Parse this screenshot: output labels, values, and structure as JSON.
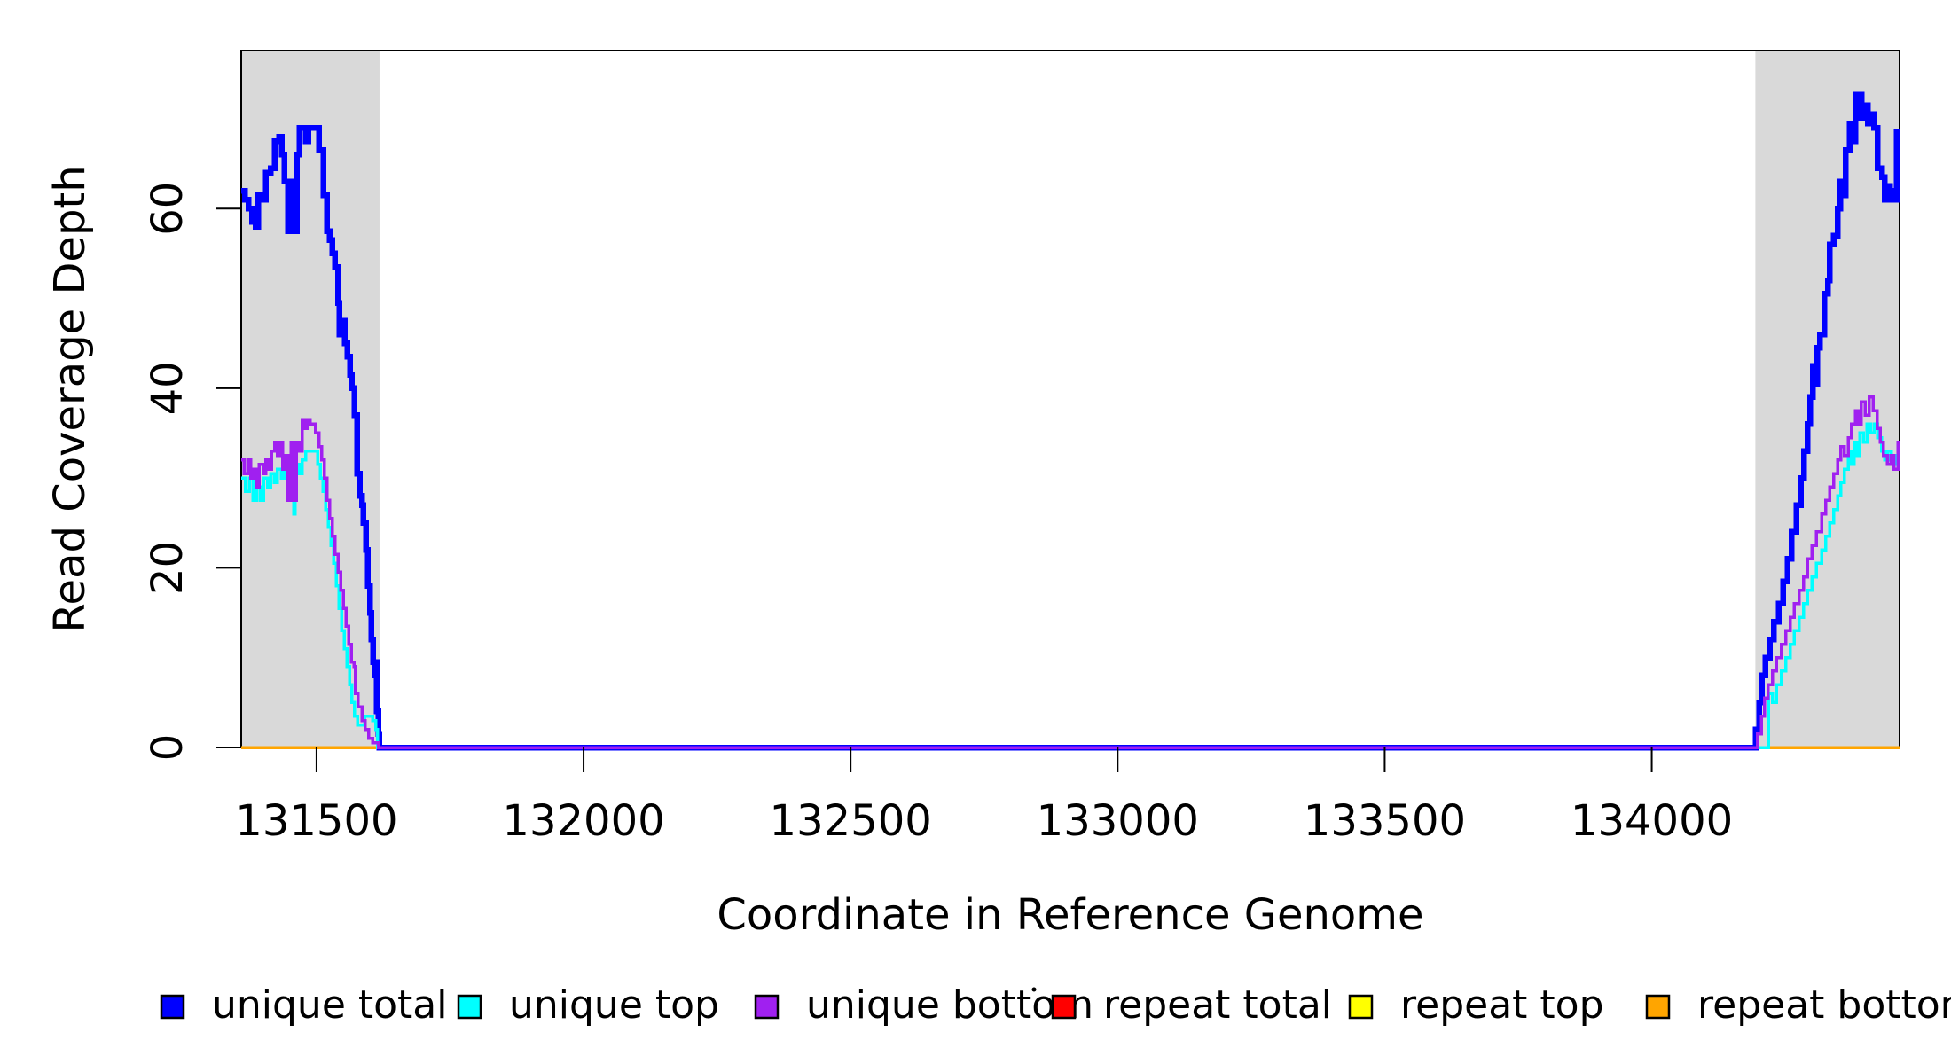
{
  "chart_data": {
    "type": "line",
    "subtype": "step-coverage",
    "title": "",
    "xlabel": "Coordinate in Reference Genome",
    "ylabel": "Read Coverage Depth",
    "xlim": [
      131359,
      134464
    ],
    "ylim": [
      0,
      77.6
    ],
    "xticks": [
      131500,
      132000,
      132500,
      133000,
      133500,
      134000
    ],
    "yticks": [
      0,
      20,
      40,
      60
    ],
    "grid": false,
    "background": "#ffffff",
    "box_color": "#000000",
    "shaded_regions": [
      {
        "from": 131359,
        "to": 131618,
        "color": "#d9d9d9"
      },
      {
        "from": 134194,
        "to": 134464,
        "color": "#d9d9d9"
      }
    ],
    "draw_order": [
      "repeat total",
      "repeat top",
      "repeat bottom",
      "unique total",
      "unique top",
      "unique bottom"
    ],
    "series": [
      {
        "name": "unique total",
        "color": "#0000ff",
        "width": 6.5,
        "points": [
          [
            131359,
            62
          ],
          [
            131366,
            61
          ],
          [
            131373,
            60
          ],
          [
            131379,
            58.5
          ],
          [
            131386,
            58
          ],
          [
            131391,
            61.5
          ],
          [
            131397,
            61
          ],
          [
            131405,
            64
          ],
          [
            131414,
            64.5
          ],
          [
            131422,
            67.5
          ],
          [
            131430,
            68
          ],
          [
            131435,
            66
          ],
          [
            131440,
            63
          ],
          [
            131447,
            57.5
          ],
          [
            131452,
            63
          ],
          [
            131457,
            57.5
          ],
          [
            131463,
            66
          ],
          [
            131468,
            69
          ],
          [
            131480,
            67.5
          ],
          [
            131485,
            69
          ],
          [
            131505,
            66.5
          ],
          [
            131513,
            61.5
          ],
          [
            131520,
            57.5
          ],
          [
            131525,
            56.5
          ],
          [
            131530,
            55
          ],
          [
            131535,
            53.5
          ],
          [
            131540,
            49.5
          ],
          [
            131543,
            46
          ],
          [
            131548,
            47.5
          ],
          [
            131553,
            45
          ],
          [
            131558,
            43.5
          ],
          [
            131563,
            41.5
          ],
          [
            131566,
            40
          ],
          [
            131571,
            37
          ],
          [
            131576,
            30.5
          ],
          [
            131581,
            28
          ],
          [
            131585,
            27
          ],
          [
            131588,
            25
          ],
          [
            131593,
            22
          ],
          [
            131596,
            18
          ],
          [
            131600,
            15
          ],
          [
            131603,
            12
          ],
          [
            131606,
            9.5
          ],
          [
            131610,
            8
          ],
          [
            131611,
            9.5
          ],
          [
            131613,
            4
          ],
          [
            131616,
            1.5
          ],
          [
            131618,
            0
          ],
          [
            134195,
            2
          ],
          [
            134201,
            5
          ],
          [
            134206,
            8
          ],
          [
            134213,
            10
          ],
          [
            134221,
            12
          ],
          [
            134229,
            14
          ],
          [
            134238,
            16
          ],
          [
            134246,
            18.5
          ],
          [
            134254,
            21
          ],
          [
            134262,
            24
          ],
          [
            134271,
            27
          ],
          [
            134279,
            30
          ],
          [
            134285,
            33
          ],
          [
            134292,
            36
          ],
          [
            134297,
            39
          ],
          [
            134302,
            42.5
          ],
          [
            134305,
            40.5
          ],
          [
            134310,
            44.5
          ],
          [
            134315,
            46
          ],
          [
            134323,
            50.5
          ],
          [
            134330,
            52
          ],
          [
            134333,
            56
          ],
          [
            134341,
            57
          ],
          [
            134348,
            60
          ],
          [
            134353,
            63
          ],
          [
            134358,
            61.5
          ],
          [
            134363,
            66.5
          ],
          [
            134371,
            69.5
          ],
          [
            134376,
            67.5
          ],
          [
            134381,
            70
          ],
          [
            134383,
            72.7
          ],
          [
            134393,
            70
          ],
          [
            134398,
            71.5
          ],
          [
            134405,
            69.5
          ],
          [
            134411,
            70.5
          ],
          [
            134416,
            69
          ],
          [
            134423,
            64.5
          ],
          [
            134431,
            63.5
          ],
          [
            134436,
            61
          ],
          [
            134441,
            62.5
          ],
          [
            134446,
            61
          ],
          [
            134451,
            62
          ],
          [
            134456,
            61
          ],
          [
            134459,
            68.5
          ]
        ]
      },
      {
        "name": "unique top",
        "color": "#00ffff",
        "width": 3.5,
        "points": [
          [
            131359,
            30
          ],
          [
            131367,
            28.5
          ],
          [
            131374,
            30
          ],
          [
            131381,
            27.5
          ],
          [
            131388,
            29
          ],
          [
            131394,
            27.5
          ],
          [
            131401,
            30
          ],
          [
            131408,
            29
          ],
          [
            131414,
            30.5
          ],
          [
            131421,
            29.5
          ],
          [
            131427,
            31
          ],
          [
            131434,
            30
          ],
          [
            131440,
            31.5
          ],
          [
            131447,
            28
          ],
          [
            131450,
            31
          ],
          [
            131457,
            26
          ],
          [
            131460,
            31.5
          ],
          [
            131467,
            30.5
          ],
          [
            131473,
            32
          ],
          [
            131480,
            33
          ],
          [
            131497,
            33
          ],
          [
            131502,
            31.5
          ],
          [
            131507,
            30
          ],
          [
            131512,
            28.5
          ],
          [
            131517,
            26.5
          ],
          [
            131522,
            24.5
          ],
          [
            131527,
            22.5
          ],
          [
            131532,
            20.5
          ],
          [
            131537,
            18
          ],
          [
            131542,
            15.5
          ],
          [
            131547,
            13
          ],
          [
            131552,
            11
          ],
          [
            131557,
            9
          ],
          [
            131562,
            7
          ],
          [
            131566,
            5
          ],
          [
            131571,
            3.5
          ],
          [
            131577,
            2.5
          ],
          [
            131590,
            3.5
          ],
          [
            131605,
            3
          ],
          [
            131611,
            2
          ],
          [
            131614,
            0
          ],
          [
            134219,
            6
          ],
          [
            134226,
            5
          ],
          [
            134234,
            7
          ],
          [
            134243,
            8.5
          ],
          [
            134251,
            10
          ],
          [
            134259,
            11.5
          ],
          [
            134267,
            13
          ],
          [
            134276,
            14.5
          ],
          [
            134284,
            16
          ],
          [
            134292,
            17.5
          ],
          [
            134300,
            19
          ],
          [
            134308,
            20.5
          ],
          [
            134318,
            22
          ],
          [
            134326,
            23.5
          ],
          [
            134333,
            25
          ],
          [
            134341,
            26.5
          ],
          [
            134348,
            28
          ],
          [
            134354,
            29.5
          ],
          [
            134361,
            31
          ],
          [
            134368,
            33
          ],
          [
            134373,
            31.5
          ],
          [
            134379,
            34
          ],
          [
            134384,
            32.5
          ],
          [
            134390,
            35
          ],
          [
            134396,
            34
          ],
          [
            134403,
            36
          ],
          [
            134410,
            35
          ],
          [
            134416,
            36
          ],
          [
            134423,
            34.5
          ],
          [
            134430,
            33
          ],
          [
            134436,
            32
          ],
          [
            134442,
            33
          ],
          [
            134449,
            31.5
          ],
          [
            134456,
            32.5
          ],
          [
            134461,
            31
          ]
        ]
      },
      {
        "name": "unique bottom",
        "color": "#a020f0",
        "width": 3.5,
        "points": [
          [
            131359,
            32
          ],
          [
            131364,
            30.5
          ],
          [
            131371,
            32
          ],
          [
            131377,
            30
          ],
          [
            131382,
            31
          ],
          [
            131388,
            29
          ],
          [
            131393,
            31.5
          ],
          [
            131400,
            30.5
          ],
          [
            131405,
            32
          ],
          [
            131411,
            31
          ],
          [
            131416,
            33
          ],
          [
            131422,
            34
          ],
          [
            131427,
            32.5
          ],
          [
            131432,
            34
          ],
          [
            131437,
            31
          ],
          [
            131442,
            32.5
          ],
          [
            131447,
            27.5
          ],
          [
            131452,
            34
          ],
          [
            131457,
            27.5
          ],
          [
            131462,
            34
          ],
          [
            131468,
            33
          ],
          [
            131473,
            36.5
          ],
          [
            131478,
            35.5
          ],
          [
            131483,
            36.5
          ],
          [
            131488,
            36
          ],
          [
            131498,
            35
          ],
          [
            131505,
            33.5
          ],
          [
            131510,
            32
          ],
          [
            131515,
            30
          ],
          [
            131520,
            27.5
          ],
          [
            131525,
            25.5
          ],
          [
            131530,
            23.5
          ],
          [
            131535,
            21.5
          ],
          [
            131540,
            19.5
          ],
          [
            131545,
            17.5
          ],
          [
            131550,
            15.5
          ],
          [
            131555,
            13.5
          ],
          [
            131560,
            11.5
          ],
          [
            131565,
            9.5
          ],
          [
            131570,
            9
          ],
          [
            131573,
            6
          ],
          [
            131578,
            4.5
          ],
          [
            131585,
            3
          ],
          [
            131591,
            2
          ],
          [
            131598,
            1
          ],
          [
            131605,
            0.5
          ],
          [
            131616,
            0
          ],
          [
            134198,
            1.5
          ],
          [
            134205,
            3.5
          ],
          [
            134211,
            5.5
          ],
          [
            134218,
            7
          ],
          [
            134226,
            8.5
          ],
          [
            134234,
            10
          ],
          [
            134243,
            11.5
          ],
          [
            134251,
            13
          ],
          [
            134259,
            14.5
          ],
          [
            134267,
            16
          ],
          [
            134276,
            17.5
          ],
          [
            134284,
            19
          ],
          [
            134292,
            21
          ],
          [
            134300,
            22.5
          ],
          [
            134308,
            24
          ],
          [
            134318,
            26
          ],
          [
            134326,
            27.5
          ],
          [
            134333,
            29
          ],
          [
            134341,
            30.5
          ],
          [
            134348,
            32
          ],
          [
            134354,
            33.5
          ],
          [
            134361,
            32.5
          ],
          [
            134368,
            34.5
          ],
          [
            134374,
            36
          ],
          [
            134381,
            37.5
          ],
          [
            134386,
            36
          ],
          [
            134392,
            38.5
          ],
          [
            134400,
            37
          ],
          [
            134407,
            39
          ],
          [
            134415,
            37.5
          ],
          [
            134422,
            35.5
          ],
          [
            134428,
            34
          ],
          [
            134434,
            32.5
          ],
          [
            134441,
            31.5
          ],
          [
            134448,
            32.5
          ],
          [
            134454,
            31
          ],
          [
            134461,
            34
          ]
        ]
      },
      {
        "name": "repeat total",
        "color": "#ff0000",
        "width": 3.5,
        "points": [
          [
            131359,
            0
          ]
        ]
      },
      {
        "name": "repeat top",
        "color": "#ffff00",
        "width": 3.5,
        "points": [
          [
            131359,
            0
          ]
        ]
      },
      {
        "name": "repeat bottom",
        "color": "#ffa500",
        "width": 3.5,
        "points": [
          [
            131359,
            0
          ]
        ]
      }
    ]
  },
  "legend": {
    "items": [
      {
        "label": "unique total",
        "color": "#0000ff"
      },
      {
        "label": "unique top",
        "color": "#00ffff"
      },
      {
        "label": "unique bottom",
        "color": "#a020f0"
      },
      {
        "label": "repeat total",
        "color": "#ff0000"
      },
      {
        "label": "repeat top",
        "color": "#ffff00"
      },
      {
        "label": "repeat bottom",
        "color": "#ffa500"
      }
    ],
    "stray_mark": "."
  }
}
